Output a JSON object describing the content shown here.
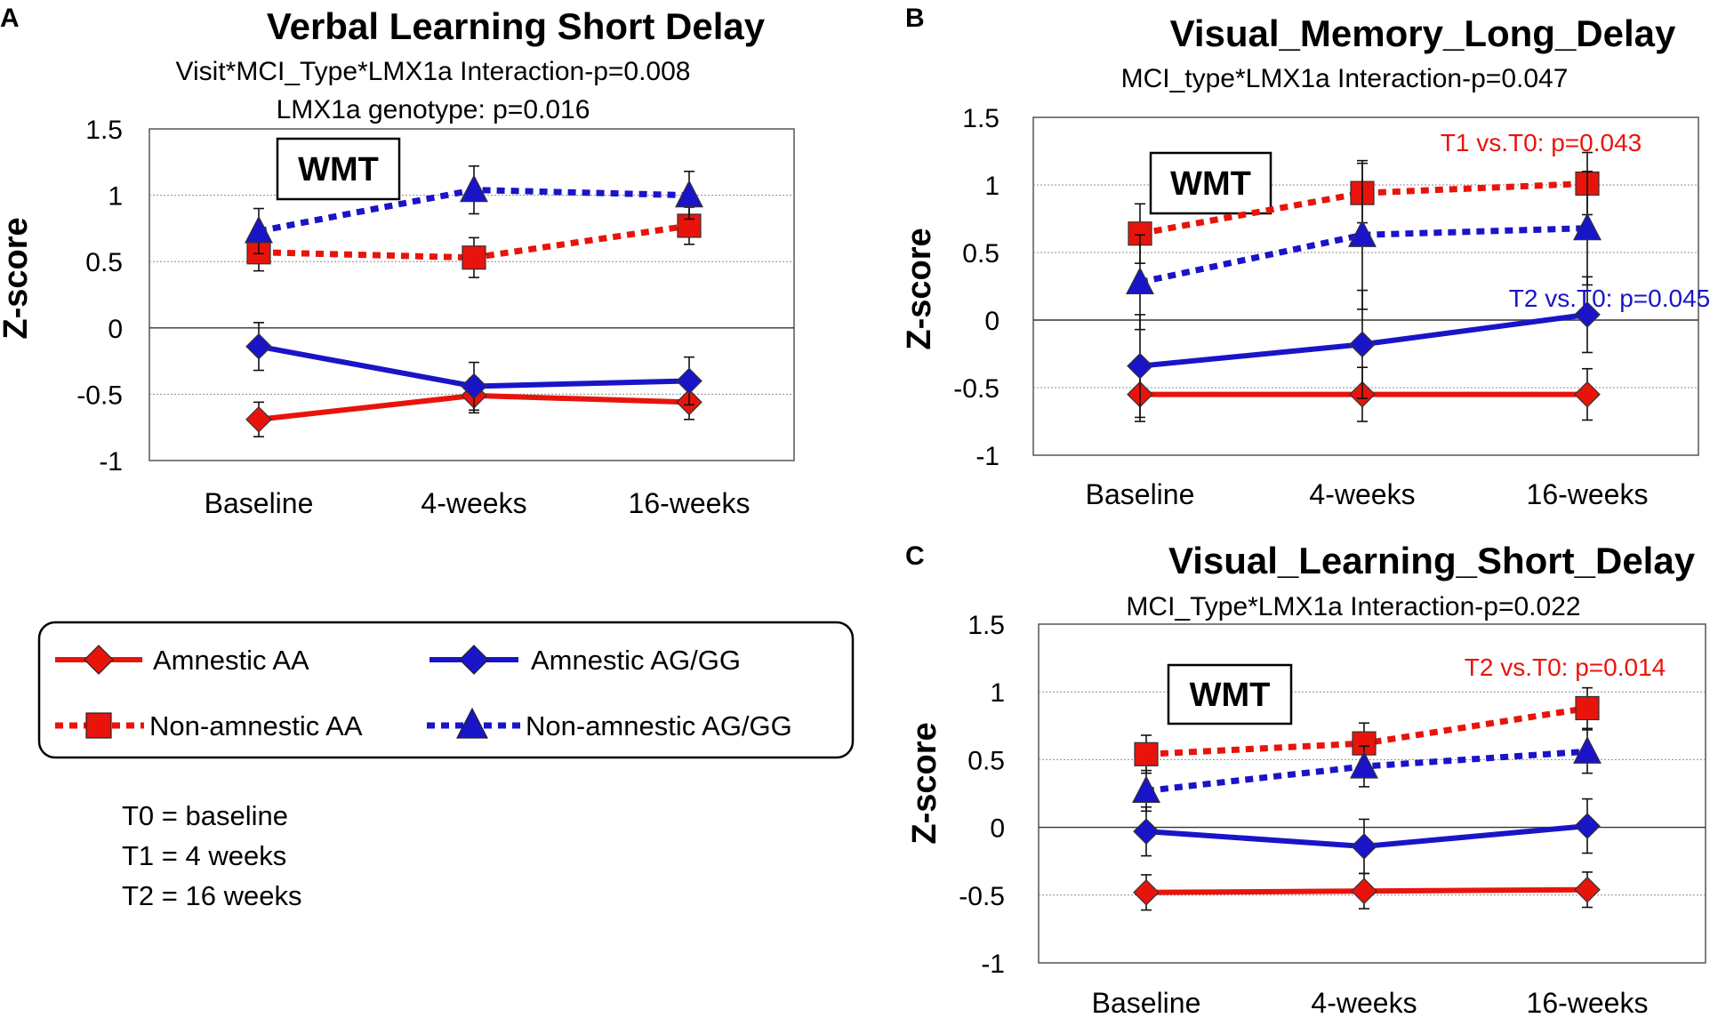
{
  "colors": {
    "red": "#e8140c",
    "blue": "#1a14c8",
    "gridline": "#8c8c8c",
    "text": "#000000"
  },
  "legend": {
    "items": [
      {
        "label": "Amnestic AA",
        "series_key": "amnestic_aa"
      },
      {
        "label": "Amnestic  AG/GG",
        "series_key": "amnestic_ag"
      },
      {
        "label": "Non-amnestic  AA",
        "series_key": "nonamnestic_aa"
      },
      {
        "label": "Non-amnestic  AG/GG",
        "series_key": "nonamnestic_ag"
      }
    ]
  },
  "notes": [
    "T0 = baseline",
    "T1 = 4 weeks",
    "T2 = 16 weeks"
  ],
  "chart_data": [
    {
      "panel": "A",
      "type": "line",
      "title": "Verbal Learning Short Delay",
      "subtitles": [
        "Visit*MCI_Type*LMX1a  Interaction-p=0.008",
        "LMX1a genotype:  p=0.016"
      ],
      "box_label": "WMT",
      "ylabel": "Z-score",
      "ylim": [
        -1,
        1.5
      ],
      "yticks": [
        "1.5",
        "1",
        "0.5",
        "0",
        "-0.5",
        "-1"
      ],
      "ytick_values": [
        1.5,
        1,
        0.5,
        0,
        -0.5,
        -1
      ],
      "categories": [
        "Baseline",
        "4-weeks",
        "16-weeks"
      ],
      "series": [
        {
          "key": "amnestic_aa",
          "name": "Amnestic AA",
          "values": [
            -0.69,
            -0.51,
            -0.56
          ],
          "err": [
            0.13,
            0.13,
            0.13
          ]
        },
        {
          "key": "amnestic_ag",
          "name": "Amnestic AG/GG",
          "values": [
            -0.14,
            -0.44,
            -0.4
          ],
          "err": [
            0.18,
            0.18,
            0.18
          ]
        },
        {
          "key": "nonamnestic_aa",
          "name": "Non-amnestic AA",
          "values": [
            0.57,
            0.53,
            0.77
          ],
          "err": [
            0.14,
            0.15,
            0.14
          ]
        },
        {
          "key": "nonamnestic_ag",
          "name": "Non-amnestic AG/GG",
          "values": [
            0.73,
            1.04,
            1.0
          ],
          "err": [
            0.17,
            0.18,
            0.18
          ]
        }
      ],
      "annotations": []
    },
    {
      "panel": "B",
      "type": "line",
      "title": "Visual_Memory_Long_Delay",
      "subtitles": [
        "MCI_type*LMX1a  Interaction-p=0.047"
      ],
      "box_label": "WMT",
      "ylabel": "Z-score",
      "ylim": [
        -1,
        1.5
      ],
      "yticks": [
        "1.5",
        "1",
        "0.5",
        "0",
        "-0.5",
        "-1"
      ],
      "ytick_values": [
        1.5,
        1,
        0.5,
        0,
        -0.5,
        -1
      ],
      "categories": [
        "Baseline",
        "4-weeks",
        "16-weeks"
      ],
      "series": [
        {
          "key": "amnestic_aa",
          "name": "Amnestic AA",
          "values": [
            -0.55,
            -0.55,
            -0.55
          ],
          "err": [
            0.2,
            0.2,
            0.19
          ]
        },
        {
          "key": "amnestic_ag",
          "name": "Amnestic AG/GG",
          "values": [
            -0.34,
            -0.18,
            0.04
          ],
          "err": [
            0.38,
            0.4,
            0.28
          ]
        },
        {
          "key": "nonamnestic_aa",
          "name": "Non-amnestic AA",
          "values": [
            0.64,
            0.94,
            1.01
          ],
          "err": [
            0.22,
            0.22,
            0.23
          ]
        },
        {
          "key": "nonamnestic_ag",
          "name": "Non-amnestic AG/GG",
          "values": [
            0.28,
            0.63,
            0.68
          ],
          "err": [
            0.35,
            0.55,
            0.42
          ]
        }
      ],
      "annotations": [
        {
          "text": "T1 vs.T0: p=0.043",
          "color_key": "red"
        },
        {
          "text": "T2 vs.T0: p=0.045",
          "color_key": "blue"
        }
      ]
    },
    {
      "panel": "C",
      "type": "line",
      "title": "Visual_Learning_Short_Delay",
      "subtitles": [
        "MCI_Type*LMX1a  Interaction-p=0.022"
      ],
      "box_label": "WMT",
      "ylabel": "Z-score",
      "ylim": [
        -1,
        1.5
      ],
      "yticks": [
        "1.5",
        "1",
        "0.5",
        "0",
        "-0.5",
        "-1"
      ],
      "ytick_values": [
        1.5,
        1,
        0.5,
        0,
        -0.5,
        -1
      ],
      "categories": [
        "Baseline",
        "4-weeks",
        "16-weeks"
      ],
      "series": [
        {
          "key": "amnestic_aa",
          "name": "Amnestic AA",
          "values": [
            -0.48,
            -0.47,
            -0.46
          ],
          "err": [
            0.13,
            0.13,
            0.13
          ]
        },
        {
          "key": "amnestic_ag",
          "name": "Amnestic AG/GG",
          "values": [
            -0.03,
            -0.14,
            0.01
          ],
          "err": [
            0.18,
            0.2,
            0.2
          ]
        },
        {
          "key": "nonamnestic_aa",
          "name": "Non-amnestic AA",
          "values": [
            0.54,
            0.62,
            0.88
          ],
          "err": [
            0.14,
            0.15,
            0.15
          ]
        },
        {
          "key": "nonamnestic_ag",
          "name": "Non-amnestic AG/GG",
          "values": [
            0.27,
            0.45,
            0.56
          ],
          "err": [
            0.15,
            0.15,
            0.16
          ]
        }
      ],
      "annotations": [
        {
          "text": "T2 vs.T0: p=0.014",
          "color_key": "red"
        }
      ]
    }
  ]
}
